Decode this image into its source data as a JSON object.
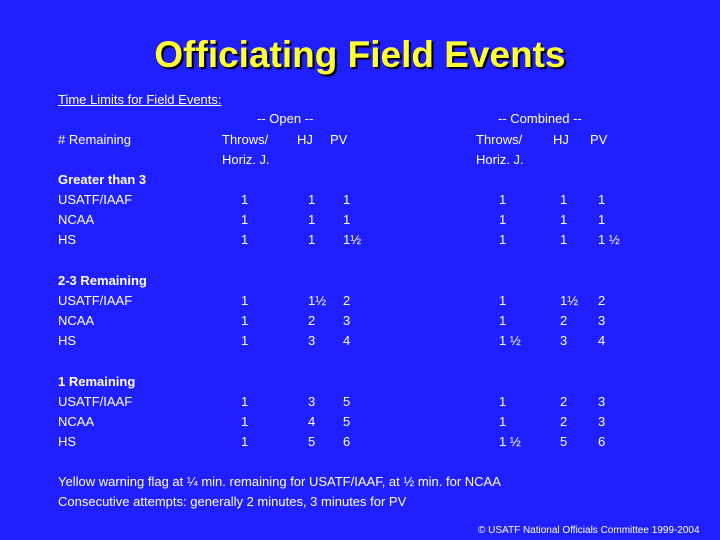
{
  "title": "Officiating Field Events",
  "intro": "Time Limits for Field Events:",
  "table": {
    "group_headers": [
      "-- Open --",
      "-- Combined --"
    ],
    "row_header": "# Remaining",
    "columns": [
      {
        "lines": [
          "Throws/",
          "Horiz. J."
        ]
      },
      {
        "lines": [
          "HJ"
        ]
      },
      {
        "lines": [
          "PV"
        ]
      },
      {
        "lines": [
          "Throws/",
          "Horiz. J."
        ]
      },
      {
        "lines": [
          "HJ"
        ]
      },
      {
        "lines": [
          "PV"
        ]
      }
    ],
    "groups": [
      {
        "label": "Greater than 3",
        "rows": [
          {
            "label": "USATF/IAAF",
            "cells": [
              "1",
              "1",
              "1",
              "1",
              "1",
              "1"
            ]
          },
          {
            "label": "NCAA",
            "cells": [
              "1",
              "1",
              "1",
              "1",
              "1",
              "1"
            ]
          },
          {
            "label": "HS",
            "cells": [
              "1",
              "1",
              "1½",
              "1",
              "1",
              "1 ½"
            ]
          }
        ]
      },
      {
        "label": "2-3 Remaining",
        "rows": [
          {
            "label": "USATF/IAAF",
            "cells": [
              "1",
              "1½",
              "2",
              "1",
              "1½",
              "2"
            ]
          },
          {
            "label": "NCAA",
            "cells": [
              "1",
              "2",
              "3",
              "1",
              "2",
              "3"
            ]
          },
          {
            "label": "HS",
            "cells": [
              "1",
              "3",
              "4",
              "1 ½",
              "3",
              "4"
            ]
          }
        ]
      },
      {
        "label": "1 Remaining",
        "rows": [
          {
            "label": "USATF/IAAF",
            "cells": [
              "1",
              "3",
              "5",
              "1",
              "2",
              "3"
            ]
          },
          {
            "label": "NCAA",
            "cells": [
              "1",
              "4",
              "5",
              "1",
              "2",
              "3"
            ]
          },
          {
            "label": "HS",
            "cells": [
              "1",
              "5",
              "6",
              "1 ½",
              "5",
              "6"
            ]
          }
        ]
      }
    ]
  },
  "notes": [
    "Yellow warning flag at ¼ min. remaining for USATF/IAAF, at ½ min. for NCAA",
    "Consecutive attempts: generally 2 minutes, 3 minutes for PV"
  ],
  "footer": "© USATF National Officials Committee 1999-2004"
}
